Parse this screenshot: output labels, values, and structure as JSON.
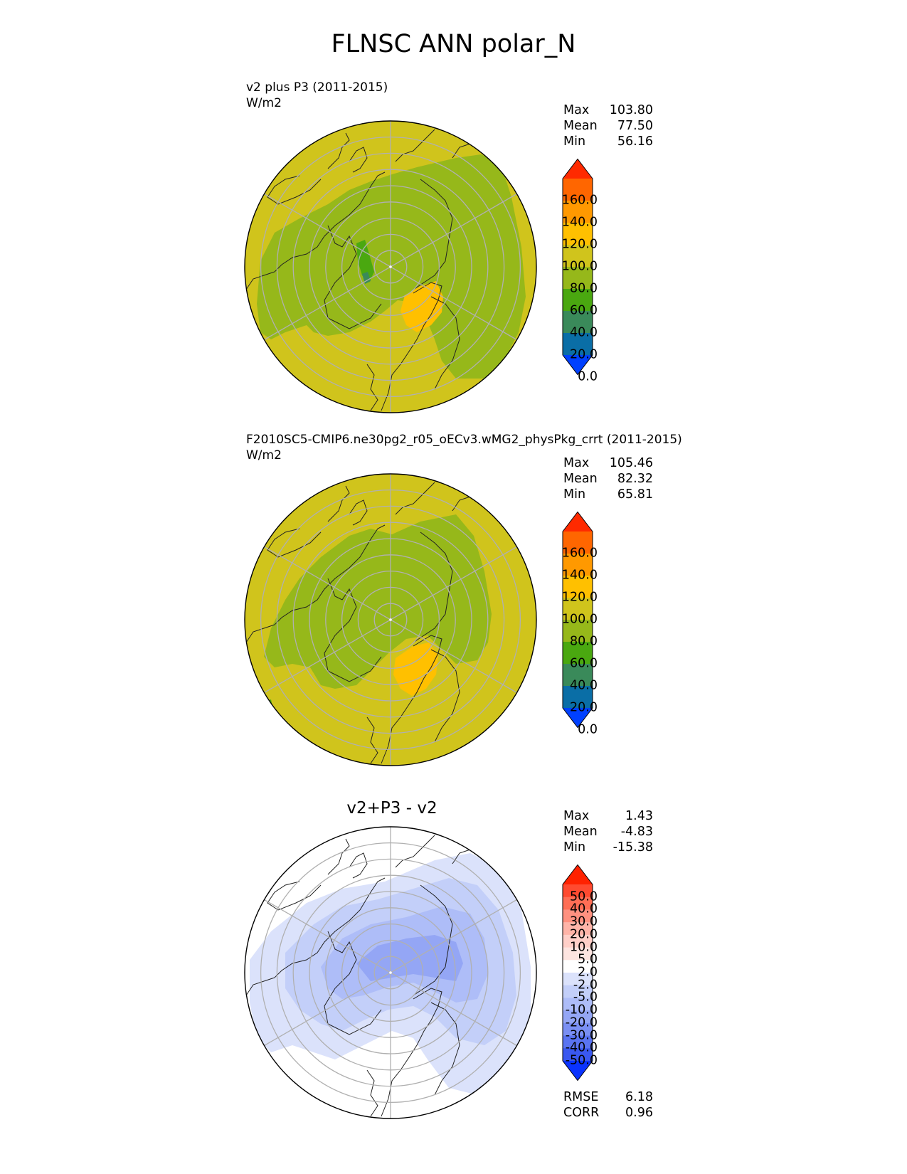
{
  "figure_title": "FLNSC ANN polar_N",
  "panels": [
    {
      "name": "test",
      "title_line1": "v2 plus P3 (2011-2015)",
      "units": "W/m2",
      "stats": {
        "max_label": "Max",
        "max": "103.80",
        "mean_label": "Mean",
        "mean": "77.50",
        "min_label": "Min",
        "min": "56.16"
      },
      "colorbar_ticks": [
        "160.0",
        "140.0",
        "120.0",
        "100.0",
        "80.0",
        "60.0",
        "40.0",
        "20.0",
        "0.0"
      ]
    },
    {
      "name": "reference",
      "title_line1": "F2010SC5-CMIP6.ne30pg2_r05_oECv3.wMG2_physPkg_crrt (2011-2015)",
      "units": "W/m2",
      "stats": {
        "max_label": "Max",
        "max": "105.46",
        "mean_label": "Mean",
        "mean": "82.32",
        "min_label": "Min",
        "min": "65.81"
      },
      "colorbar_ticks": [
        "160.0",
        "140.0",
        "120.0",
        "100.0",
        "80.0",
        "60.0",
        "40.0",
        "20.0",
        "0.0"
      ]
    },
    {
      "name": "difference",
      "center_title": "v2+P3 - v2",
      "stats": {
        "max_label": "Max",
        "max": "1.43",
        "mean_label": "Mean",
        "mean": "-4.83",
        "min_label": "Min",
        "min": "-15.38"
      },
      "colorbar_ticks": [
        "50.0",
        "40.0",
        "30.0",
        "20.0",
        "10.0",
        "5.0",
        "2.0",
        "-2.0",
        "-5.0",
        "-10.0",
        "-20.0",
        "-30.0",
        "-40.0",
        "-50.0"
      ],
      "metrics": {
        "rmse_label": "RMSE",
        "rmse": "6.18",
        "corr_label": "CORR",
        "corr": "0.96"
      }
    }
  ],
  "colors": {
    "field_cbar": [
      "#ff2a00",
      "#ff6600",
      "#ff9900",
      "#ffc000",
      "#d0c41c",
      "#96b81a",
      "#4aa810",
      "#3a8a5a",
      "#0a6ea6",
      "#0040ff"
    ],
    "diff_cbar": [
      "#ff2200",
      "#ff4a30",
      "#ff6e55",
      "#ff9180",
      "#ffb4a8",
      "#ffcfc8",
      "#fde4e0",
      "#ffffff",
      "#dbe2fb",
      "#c3cff9",
      "#aebdf8",
      "#94a6f5",
      "#7a8ff3",
      "#5a74f2",
      "#3a58f0",
      "#0a33ff"
    ]
  }
}
